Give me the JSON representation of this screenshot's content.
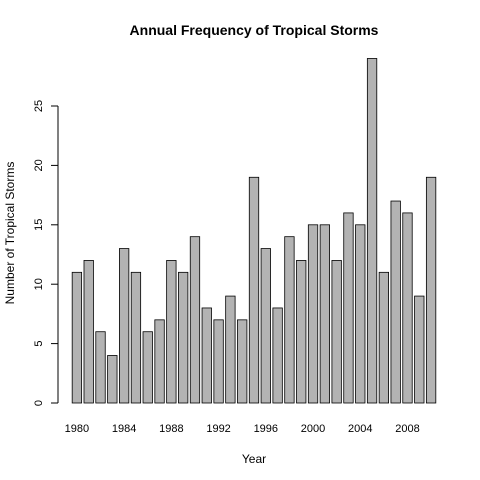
{
  "chart_data": {
    "type": "bar",
    "title": "Annual Frequency of Tropical Storms",
    "xlabel": "Year",
    "ylabel": "Number of Tropical Storms",
    "categories": [
      1980,
      1981,
      1982,
      1983,
      1984,
      1985,
      1986,
      1987,
      1988,
      1989,
      1990,
      1991,
      1992,
      1993,
      1994,
      1995,
      1996,
      1997,
      1998,
      1999,
      2000,
      2001,
      2002,
      2003,
      2004,
      2005,
      2006,
      2007,
      2008,
      2009,
      2010
    ],
    "values": [
      11,
      12,
      6,
      4,
      13,
      11,
      6,
      7,
      12,
      11,
      14,
      8,
      7,
      9,
      7,
      19,
      13,
      8,
      14,
      12,
      15,
      15,
      12,
      16,
      15,
      29,
      11,
      17,
      16,
      9,
      19
    ],
    "x_tick_labels": [
      "1980",
      "1984",
      "1988",
      "1992",
      "1996",
      "2000",
      "2004",
      "2008"
    ],
    "y_ticks": [
      0,
      5,
      10,
      15,
      20,
      25
    ],
    "ylim": [
      0,
      29
    ],
    "grid": false,
    "colors": {
      "bar_fill": "#b3b3b3",
      "bar_stroke": "#000000"
    }
  }
}
